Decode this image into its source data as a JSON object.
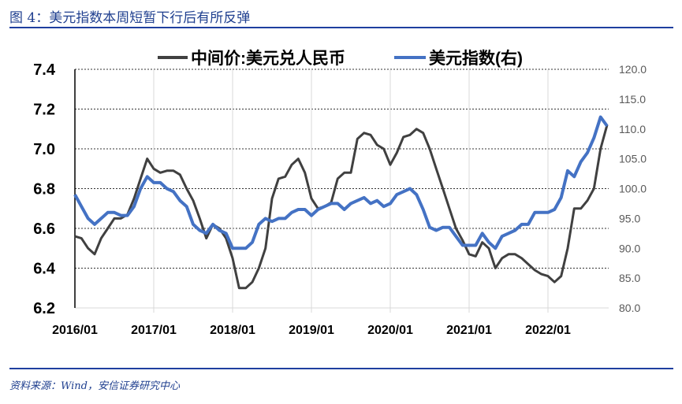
{
  "title": "图 4：美元指数本周短暂下行后有所反弹",
  "source": "资料来源：Wind，安信证券研究中心",
  "chart_data": {
    "type": "line",
    "x_start": "2016/01",
    "x_frequency": "monthly",
    "xticks": [
      "2016/01",
      "2017/01",
      "2018/01",
      "2019/01",
      "2020/01",
      "2021/01",
      "2022/01"
    ],
    "ylim_left": [
      6.2,
      7.4
    ],
    "yticks_left": [
      "6.2",
      "6.4",
      "6.6",
      "6.8",
      "7.0",
      "7.2",
      "7.4"
    ],
    "ylim_right": [
      80,
      120
    ],
    "yticks_right": [
      "80.0",
      "85.0",
      "90.0",
      "95.0",
      "100.0",
      "105.0",
      "110.0",
      "115.0",
      "120.0"
    ],
    "grid": "horizontal dashed",
    "legend_placement": "top",
    "series": [
      {
        "name": "中间价:美元兑人民币",
        "axis": "left",
        "color": "#404040",
        "values": [
          6.56,
          6.55,
          6.5,
          6.47,
          6.55,
          6.6,
          6.65,
          6.65,
          6.67,
          6.75,
          6.85,
          6.95,
          6.9,
          6.88,
          6.89,
          6.89,
          6.87,
          6.8,
          6.74,
          6.65,
          6.55,
          6.62,
          6.6,
          6.55,
          6.45,
          6.3,
          6.3,
          6.33,
          6.4,
          6.5,
          6.75,
          6.85,
          6.86,
          6.92,
          6.95,
          6.88,
          6.75,
          6.7,
          6.71,
          6.73,
          6.85,
          6.88,
          6.88,
          7.05,
          7.08,
          7.07,
          7.02,
          7.0,
          6.92,
          6.98,
          7.06,
          7.07,
          7.1,
          7.08,
          7.0,
          6.9,
          6.8,
          6.7,
          6.6,
          6.54,
          6.47,
          6.46,
          6.53,
          6.5,
          6.4,
          6.45,
          6.47,
          6.47,
          6.45,
          6.42,
          6.39,
          6.37,
          6.36,
          6.33,
          6.36,
          6.5,
          6.7,
          6.7,
          6.74,
          6.8,
          7.0,
          7.12
        ]
      },
      {
        "name": "美元指数(右)",
        "axis": "right",
        "color": "#4472c4",
        "values": [
          99,
          97,
          95,
          94,
          95,
          96,
          96,
          95.5,
          95.5,
          97,
          100,
          102,
          101,
          101,
          100,
          99.5,
          98,
          97,
          94,
          93,
          92.5,
          94,
          93,
          92.5,
          90,
          90,
          90,
          91,
          94,
          95,
          94.5,
          95,
          95,
          96,
          96.5,
          96.5,
          95.5,
          96.5,
          97,
          97.5,
          97.5,
          96.5,
          97.5,
          98,
          98.5,
          97.5,
          98,
          97,
          97.5,
          99,
          99.5,
          100,
          99,
          96.5,
          93.5,
          93,
          93.5,
          93.5,
          92,
          90.5,
          90.5,
          90.5,
          92.5,
          91,
          90,
          92,
          92.5,
          93,
          94,
          94,
          96,
          96,
          96,
          96.5,
          98.5,
          103,
          102,
          104.5,
          106,
          108.5,
          112,
          110.5
        ]
      }
    ]
  }
}
